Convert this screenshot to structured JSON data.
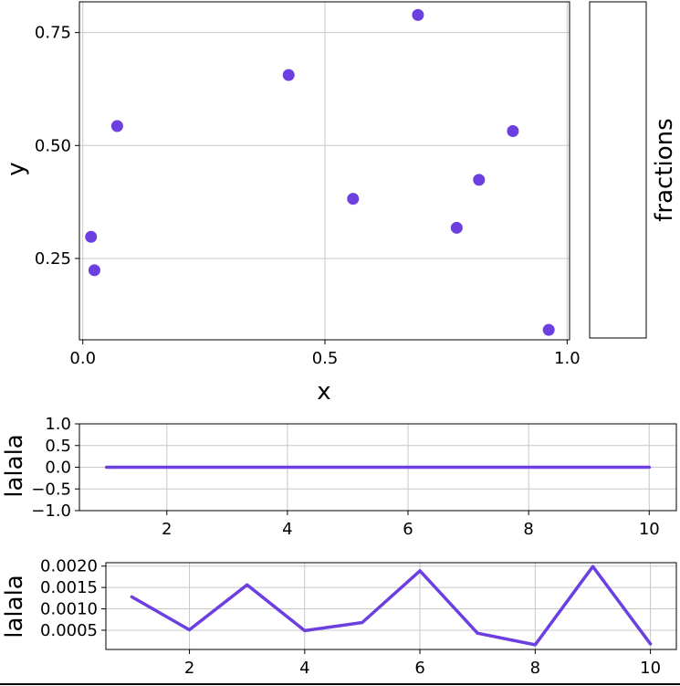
{
  "chart_data": [
    {
      "type": "scatter",
      "name": "main-scatter",
      "xlabel": "x",
      "ylabel": "y",
      "xlim": [
        -0.007,
        1.005
      ],
      "ylim": [
        0.07,
        0.818
      ],
      "xticks": [
        0,
        0.5,
        1
      ],
      "xtick_labels": [
        "0.0",
        "0.5",
        "1.0"
      ],
      "yticks": [
        0.25,
        0.5,
        0.75
      ],
      "ytick_labels": [
        "0.25",
        "0.50",
        "0.75"
      ],
      "grid": true,
      "color": "#6b3fe0",
      "points": [
        {
          "x": 0.017,
          "y": 0.298
        },
        {
          "x": 0.024,
          "y": 0.224
        },
        {
          "x": 0.071,
          "y": 0.543
        },
        {
          "x": 0.425,
          "y": 0.656
        },
        {
          "x": 0.558,
          "y": 0.382
        },
        {
          "x": 0.692,
          "y": 0.789
        },
        {
          "x": 0.772,
          "y": 0.318
        },
        {
          "x": 0.818,
          "y": 0.424
        },
        {
          "x": 0.888,
          "y": 0.532
        },
        {
          "x": 0.962,
          "y": 0.092
        }
      ],
      "colorbar": {
        "label": "fractions"
      }
    },
    {
      "type": "line",
      "name": "flat-line",
      "ylabel": "lalala",
      "xlim": [
        0.55,
        10.45
      ],
      "ylim": [
        -1,
        1
      ],
      "xticks": [
        2,
        4,
        6,
        8,
        10
      ],
      "xtick_labels": [
        "2",
        "4",
        "6",
        "8",
        "10"
      ],
      "yticks": [
        -1,
        -0.5,
        0,
        0.5,
        1
      ],
      "ytick_labels": [
        "−1.0",
        "−0.5",
        "0.0",
        "0.5",
        "1.0"
      ],
      "grid": true,
      "color": "#6b3fe0",
      "x": [
        1,
        2,
        3,
        4,
        5,
        6,
        7,
        8,
        9,
        10
      ],
      "y": [
        0,
        0,
        0,
        0,
        0,
        0,
        0,
        0,
        0,
        0
      ]
    },
    {
      "type": "line",
      "name": "small-values-line",
      "ylabel": "lalala",
      "xlim": [
        0.55,
        10.45
      ],
      "ylim": [
        5e-05,
        0.00208
      ],
      "xticks": [
        2,
        4,
        6,
        8,
        10
      ],
      "xtick_labels": [
        "2",
        "4",
        "6",
        "8",
        "10"
      ],
      "yticks": [
        0.0005,
        0.001,
        0.0015,
        0.002
      ],
      "ytick_labels": [
        "0.0005",
        "0.0010",
        "0.0015",
        "0.0020"
      ],
      "grid": true,
      "color": "#6b3fe0",
      "x": [
        1,
        2,
        3,
        4,
        5,
        6,
        7,
        8,
        9,
        10
      ],
      "y": [
        0.00128,
        0.00051,
        0.00156,
        0.00049,
        0.00068,
        0.00189,
        0.00043,
        0.00016,
        0.00199,
        0.00018
      ]
    }
  ]
}
